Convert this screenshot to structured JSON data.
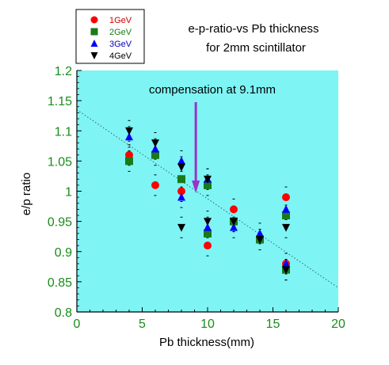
{
  "chart_data": {
    "type": "scatter",
    "title": "e-p-ratio-vs Pb thickness",
    "subtitle": "for 2mm scintillator",
    "xlabel": "Pb thickness(mm)",
    "ylabel": "e/p ratio",
    "xlim": [
      0,
      20
    ],
    "ylim": [
      0.8,
      1.2
    ],
    "x_ticks": [
      "0",
      "5",
      "10",
      "15",
      "20"
    ],
    "y_ticks": [
      "0.8",
      "0.85",
      "0.9",
      "0.95",
      "1",
      "1.05",
      "1.1",
      "1.15",
      "1.2"
    ],
    "grid": false,
    "legend_position": "top-left",
    "background_color": "#7ff4f4",
    "axis_tick_color": "#1a8c1a",
    "annotation": {
      "text": "compensation at 9.1mm",
      "x": 9.1,
      "arrow_color": "#9933cc"
    },
    "fit_line": {
      "style": "dotted",
      "points": [
        [
          0,
          1.135
        ],
        [
          20,
          0.84
        ]
      ]
    },
    "series": [
      {
        "name": "1GeV",
        "marker": "circle",
        "color": "#ff0000",
        "label_color": "#cc0000",
        "points": [
          [
            4,
            1.06
          ],
          [
            6,
            1.01
          ],
          [
            8,
            1.0
          ],
          [
            10,
            0.91
          ],
          [
            12,
            0.97
          ],
          [
            16,
            0.99
          ],
          [
            16,
            0.88
          ]
        ]
      },
      {
        "name": "2GeV",
        "marker": "square",
        "color": "#1a7a1a",
        "label_color": "#1a7a1a",
        "points": [
          [
            4,
            1.05
          ],
          [
            6,
            1.06
          ],
          [
            8,
            1.02
          ],
          [
            10,
            1.01
          ],
          [
            10,
            0.93
          ],
          [
            12,
            0.95
          ],
          [
            14,
            0.92
          ],
          [
            16,
            0.96
          ],
          [
            16,
            0.87
          ]
        ]
      },
      {
        "name": "3GeV",
        "marker": "triangle-up",
        "color": "#0000ff",
        "label_color": "#0000cc",
        "points": [
          [
            4,
            1.09
          ],
          [
            6,
            1.07
          ],
          [
            8,
            1.05
          ],
          [
            8,
            0.99
          ],
          [
            10,
            1.02
          ],
          [
            10,
            0.94
          ],
          [
            12,
            0.94
          ],
          [
            14,
            0.93
          ],
          [
            16,
            0.97
          ],
          [
            16,
            0.88
          ]
        ]
      },
      {
        "name": "4GeV",
        "marker": "triangle-down",
        "color": "#000000",
        "label_color": "#000000",
        "points": [
          [
            4,
            1.1
          ],
          [
            6,
            1.08
          ],
          [
            8,
            1.04
          ],
          [
            8,
            0.94
          ],
          [
            10,
            1.02
          ],
          [
            10,
            0.95
          ],
          [
            12,
            0.95
          ],
          [
            14,
            0.92
          ],
          [
            16,
            0.94
          ],
          [
            16,
            0.87
          ]
        ]
      }
    ]
  }
}
